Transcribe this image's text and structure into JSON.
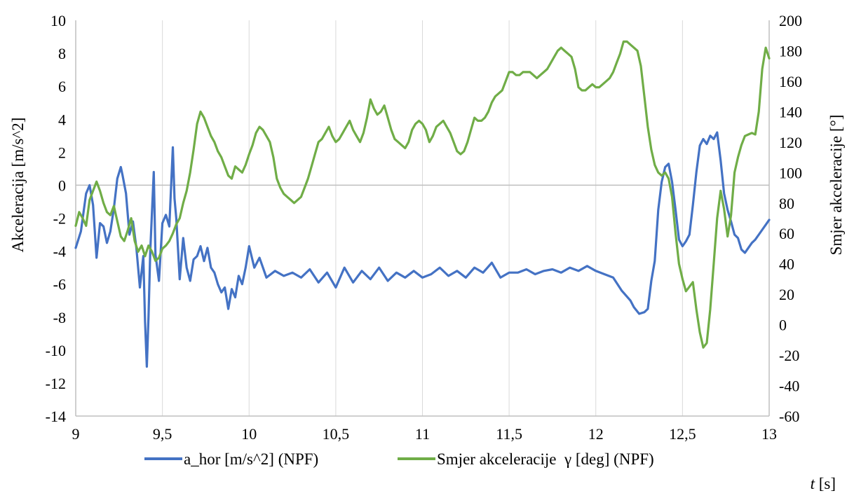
{
  "chart_data": {
    "type": "line",
    "title": "",
    "xlabel": "t [s]",
    "ylabel_left": "Akceleracija [m/s^2]",
    "ylabel_right": "Smjer akceleracije [°]",
    "xlim": [
      9,
      13
    ],
    "ylim_left": [
      -14,
      10
    ],
    "ylim_right": [
      -60,
      200
    ],
    "x_ticks": [
      9,
      9.5,
      10,
      10.5,
      11,
      11.5,
      12,
      12.5,
      13
    ],
    "x_tick_labels": [
      "9",
      "9,5",
      "10",
      "10,5",
      "11",
      "11,5",
      "12",
      "12,5",
      "13"
    ],
    "y_left_ticks": [
      10,
      8,
      6,
      4,
      2,
      0,
      -2,
      -4,
      -6,
      -8,
      -10,
      -12,
      -14
    ],
    "y_right_ticks": [
      200,
      180,
      160,
      140,
      120,
      100,
      80,
      60,
      40,
      20,
      0,
      -20,
      -40,
      -60
    ],
    "grid": "vertical",
    "legend_position": "bottom",
    "series": [
      {
        "name": "a_hor [m/s^2] (NPF)",
        "axis": "left",
        "color": "#4472c4",
        "x": [
          9.0,
          9.03,
          9.06,
          9.08,
          9.1,
          9.12,
          9.14,
          9.16,
          9.18,
          9.2,
          9.22,
          9.24,
          9.26,
          9.27,
          9.29,
          9.31,
          9.33,
          9.35,
          9.37,
          9.39,
          9.4,
          9.41,
          9.42,
          9.43,
          9.45,
          9.46,
          9.48,
          9.5,
          9.52,
          9.54,
          9.56,
          9.57,
          9.58,
          9.6,
          9.62,
          9.64,
          9.66,
          9.68,
          9.7,
          9.72,
          9.74,
          9.76,
          9.78,
          9.8,
          9.82,
          9.84,
          9.86,
          9.88,
          9.9,
          9.92,
          9.94,
          9.96,
          9.98,
          10.0,
          10.03,
          10.06,
          10.1,
          10.15,
          10.2,
          10.25,
          10.3,
          10.35,
          10.4,
          10.45,
          10.5,
          10.55,
          10.6,
          10.65,
          10.7,
          10.75,
          10.8,
          10.85,
          10.9,
          10.95,
          11.0,
          11.05,
          11.1,
          11.15,
          11.2,
          11.25,
          11.3,
          11.35,
          11.4,
          11.45,
          11.5,
          11.55,
          11.6,
          11.65,
          11.7,
          11.75,
          11.8,
          11.85,
          11.9,
          11.95,
          12.0,
          12.05,
          12.1,
          12.15,
          12.2,
          12.22,
          12.25,
          12.28,
          12.3,
          12.32,
          12.34,
          12.36,
          12.38,
          12.4,
          12.42,
          12.44,
          12.46,
          12.48,
          12.5,
          12.52,
          12.54,
          12.56,
          12.58,
          12.6,
          12.62,
          12.64,
          12.66,
          12.68,
          12.7,
          12.72,
          12.74,
          12.76,
          12.78,
          12.8,
          12.82,
          12.84,
          12.86,
          12.88,
          12.9,
          12.92,
          12.94,
          12.96,
          12.98,
          13.0
        ],
        "y": [
          -3.8,
          -2.8,
          -0.5,
          0.0,
          -1.2,
          -4.4,
          -2.3,
          -2.5,
          -3.5,
          -2.8,
          -1.4,
          0.4,
          1.1,
          0.6,
          -0.5,
          -3.0,
          -2.2,
          -3.8,
          -6.2,
          -4.3,
          -8.3,
          -11.0,
          -8.0,
          -4.0,
          0.8,
          -4.2,
          -5.8,
          -2.3,
          -1.8,
          -2.5,
          2.3,
          -0.8,
          -2.0,
          -5.7,
          -3.2,
          -5.0,
          -5.8,
          -4.5,
          -4.3,
          -3.7,
          -4.6,
          -3.8,
          -5.0,
          -5.3,
          -6.0,
          -6.5,
          -6.2,
          -7.5,
          -6.3,
          -6.8,
          -5.5,
          -6.0,
          -5.0,
          -3.7,
          -5.0,
          -4.4,
          -5.6,
          -5.2,
          -5.5,
          -5.3,
          -5.6,
          -5.1,
          -5.9,
          -5.3,
          -6.2,
          -5.0,
          -5.9,
          -5.2,
          -5.7,
          -5.0,
          -5.8,
          -5.3,
          -5.6,
          -5.2,
          -5.6,
          -5.4,
          -5.0,
          -5.5,
          -5.2,
          -5.6,
          -5.0,
          -5.3,
          -4.7,
          -5.6,
          -5.3,
          -5.3,
          -5.1,
          -5.4,
          -5.2,
          -5.1,
          -5.3,
          -5.0,
          -5.2,
          -4.9,
          -5.2,
          -5.4,
          -5.6,
          -6.4,
          -7.0,
          -7.4,
          -7.8,
          -7.7,
          -7.5,
          -5.8,
          -4.6,
          -1.5,
          0.2,
          1.1,
          1.3,
          0.2,
          -1.5,
          -3.3,
          -3.7,
          -3.4,
          -3.0,
          -1.2,
          0.8,
          2.4,
          2.8,
          2.5,
          3.0,
          2.8,
          3.2,
          1.5,
          -0.5,
          -1.5,
          -2.2,
          -3.0,
          -3.2,
          -3.9,
          -4.1,
          -3.8,
          -3.5,
          -3.3,
          -3.0,
          -2.7,
          -2.4,
          -2.1
        ]
      },
      {
        "name": "Smjer akceleracije  γ [deg] (NPF)",
        "axis": "right",
        "color": "#70ad47",
        "x": [
          9.0,
          9.02,
          9.04,
          9.06,
          9.08,
          9.1,
          9.12,
          9.14,
          9.16,
          9.18,
          9.2,
          9.22,
          9.24,
          9.26,
          9.28,
          9.3,
          9.32,
          9.34,
          9.36,
          9.38,
          9.4,
          9.42,
          9.44,
          9.46,
          9.48,
          9.5,
          9.52,
          9.54,
          9.56,
          9.58,
          9.6,
          9.62,
          9.64,
          9.66,
          9.68,
          9.7,
          9.72,
          9.74,
          9.76,
          9.78,
          9.8,
          9.82,
          9.84,
          9.86,
          9.88,
          9.9,
          9.92,
          9.94,
          9.96,
          9.98,
          10.0,
          10.02,
          10.04,
          10.06,
          10.08,
          10.1,
          10.12,
          10.14,
          10.16,
          10.18,
          10.2,
          10.22,
          10.24,
          10.26,
          10.28,
          10.3,
          10.32,
          10.34,
          10.36,
          10.38,
          10.4,
          10.42,
          10.44,
          10.46,
          10.48,
          10.5,
          10.52,
          10.54,
          10.56,
          10.58,
          10.6,
          10.62,
          10.64,
          10.66,
          10.68,
          10.7,
          10.72,
          10.74,
          10.76,
          10.78,
          10.8,
          10.82,
          10.84,
          10.86,
          10.88,
          10.9,
          10.92,
          10.94,
          10.96,
          10.98,
          11.0,
          11.02,
          11.04,
          11.06,
          11.08,
          11.1,
          11.12,
          11.14,
          11.16,
          11.18,
          11.2,
          11.22,
          11.24,
          11.26,
          11.28,
          11.3,
          11.32,
          11.34,
          11.36,
          11.38,
          11.4,
          11.42,
          11.44,
          11.46,
          11.48,
          11.5,
          11.52,
          11.54,
          11.56,
          11.58,
          11.6,
          11.62,
          11.64,
          11.66,
          11.68,
          11.7,
          11.72,
          11.74,
          11.76,
          11.78,
          11.8,
          11.82,
          11.84,
          11.86,
          11.88,
          11.9,
          11.92,
          11.94,
          11.96,
          11.98,
          12.0,
          12.02,
          12.04,
          12.06,
          12.08,
          12.1,
          12.12,
          12.14,
          12.16,
          12.18,
          12.2,
          12.22,
          12.24,
          12.26,
          12.28,
          12.3,
          12.32,
          12.34,
          12.36,
          12.38,
          12.4,
          12.42,
          12.44,
          12.46,
          12.48,
          12.5,
          12.52,
          12.54,
          12.56,
          12.58,
          12.6,
          12.62,
          12.64,
          12.66,
          12.68,
          12.7,
          12.72,
          12.74,
          12.76,
          12.78,
          12.8,
          12.82,
          12.84,
          12.86,
          12.88,
          12.9,
          12.92,
          12.94,
          12.96,
          12.98,
          13.0
        ],
        "y": [
          65,
          74,
          70,
          65,
          82,
          88,
          94,
          88,
          80,
          74,
          72,
          78,
          68,
          58,
          55,
          62,
          70,
          55,
          48,
          52,
          45,
          52,
          48,
          42,
          44,
          50,
          52,
          55,
          60,
          66,
          70,
          80,
          88,
          100,
          115,
          132,
          140,
          136,
          130,
          124,
          120,
          114,
          110,
          104,
          98,
          96,
          104,
          102,
          100,
          105,
          112,
          118,
          126,
          130,
          128,
          124,
          120,
          110,
          96,
          90,
          86,
          84,
          82,
          80,
          82,
          84,
          90,
          96,
          104,
          112,
          120,
          122,
          126,
          130,
          124,
          120,
          122,
          126,
          130,
          134,
          128,
          124,
          120,
          126,
          136,
          148,
          142,
          138,
          140,
          144,
          136,
          128,
          122,
          120,
          118,
          116,
          120,
          128,
          132,
          134,
          132,
          128,
          120,
          124,
          130,
          132,
          134,
          130,
          126,
          120,
          114,
          112,
          114,
          120,
          128,
          136,
          134,
          134,
          136,
          140,
          146,
          150,
          152,
          154,
          160,
          166,
          166,
          164,
          164,
          166,
          166,
          166,
          164,
          162,
          164,
          166,
          168,
          172,
          176,
          180,
          182,
          180,
          178,
          176,
          168,
          156,
          154,
          154,
          156,
          158,
          156,
          156,
          158,
          160,
          162,
          166,
          172,
          178,
          186,
          186,
          184,
          182,
          180,
          170,
          150,
          130,
          115,
          105,
          100,
          98,
          100,
          96,
          84,
          60,
          40,
          30,
          22,
          25,
          28,
          10,
          -5,
          -15,
          -12,
          10,
          40,
          70,
          88,
          76,
          58,
          72,
          100,
          110,
          118,
          124,
          125,
          126,
          125,
          140,
          168,
          182,
          175
        ]
      }
    ]
  }
}
